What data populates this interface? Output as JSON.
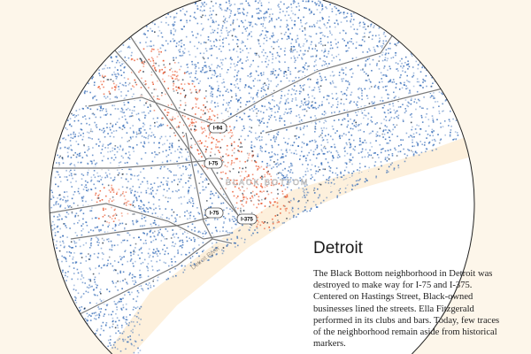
{
  "map": {
    "neighborhood_label": "BLACK BOTTOM",
    "river_label": "Detroit River",
    "highway_shields": [
      "I-94",
      "I-75",
      "I-75",
      "I-375"
    ],
    "colors": {
      "background": "#fdf6ea",
      "land": "#ffffff",
      "dots_primary": "#2a64b4",
      "dots_highlight": "#e8491d",
      "dots_dark": "#1a2a3a",
      "roads": "#888888"
    }
  },
  "panel": {
    "title": "Detroit",
    "description": "The Black Bottom neighborhood in Detroit was destroyed to make way for I-75 and I-375. Centered on Hastings Street, Black-owned businesses lined the streets. Ella Fitzgerald performed in its clubs and bars. Today, few traces of the neighborhood remain aside from historical markers."
  }
}
